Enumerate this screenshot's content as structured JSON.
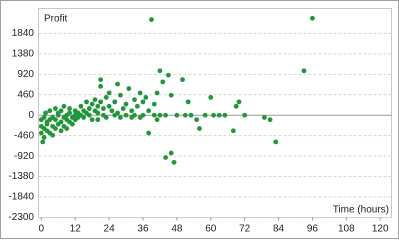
{
  "chart_data": {
    "type": "scatter",
    "y_label": "Profit",
    "x_label": "Time (hours)",
    "color": "#21963a",
    "xlim": [
      -1,
      124
    ],
    "ylim": [
      -2300,
      2400
    ],
    "xticks": [
      0,
      12,
      24,
      36,
      48,
      60,
      72,
      84,
      96,
      108,
      120
    ],
    "yticks": [
      -2300,
      -1840,
      -1380,
      -920,
      -460,
      0,
      460,
      920,
      1380,
      1840
    ],
    "grid": true,
    "x": [
      0,
      0,
      0,
      0.5,
      1,
      1,
      1,
      1.5,
      2,
      2,
      2,
      3,
      3,
      3,
      4,
      4,
      4,
      5,
      5,
      5,
      6,
      6,
      6,
      7,
      7,
      7,
      8,
      8,
      8,
      9,
      9,
      9,
      10,
      10,
      10,
      11,
      11,
      12,
      12,
      12,
      13,
      13,
      14,
      14,
      15,
      15,
      16,
      16,
      17,
      17,
      18,
      18,
      19,
      19,
      20,
      20,
      20,
      21,
      21,
      21,
      22,
      22,
      23,
      23,
      24,
      24,
      25,
      26,
      26,
      27,
      27,
      28,
      28,
      29,
      30,
      30,
      31,
      32,
      32,
      33,
      33,
      34,
      35,
      35,
      36,
      36,
      37,
      38,
      38,
      39,
      40,
      40,
      41,
      41,
      42,
      42,
      43,
      44,
      44,
      45,
      46,
      46,
      47,
      48,
      50,
      51,
      52,
      53,
      55,
      56,
      58,
      60,
      61,
      63,
      65,
      68,
      69,
      70,
      72,
      79,
      81,
      83,
      93,
      96
    ],
    "y": [
      -100,
      -250,
      -400,
      -600,
      -50,
      -300,
      -500,
      50,
      -150,
      -350,
      -200,
      -100,
      -400,
      100,
      -50,
      -250,
      -450,
      150,
      -100,
      -300,
      0,
      -200,
      50,
      -150,
      -350,
      100,
      -50,
      -250,
      200,
      0,
      -100,
      -300,
      50,
      -150,
      150,
      -50,
      -200,
      100,
      0,
      -100,
      50,
      -50,
      200,
      0,
      100,
      -50,
      300,
      50,
      0,
      150,
      250,
      -100,
      100,
      350,
      50,
      200,
      -100,
      650,
      800,
      300,
      0,
      150,
      400,
      -50,
      200,
      500,
      100,
      300,
      0,
      50,
      700,
      450,
      -50,
      150,
      250,
      0,
      600,
      100,
      -50,
      350,
      0,
      200,
      500,
      -50,
      0,
      300,
      400,
      -400,
      100,
      2150,
      250,
      0,
      500,
      -100,
      1000,
      0,
      750,
      -950,
      0,
      900,
      450,
      -850,
      -1060,
      0,
      800,
      0,
      300,
      0,
      -100,
      -300,
      0,
      400,
      0,
      0,
      0,
      -350,
      200,
      300,
      0,
      -50,
      -100,
      -600,
      1000,
      2180
    ]
  }
}
